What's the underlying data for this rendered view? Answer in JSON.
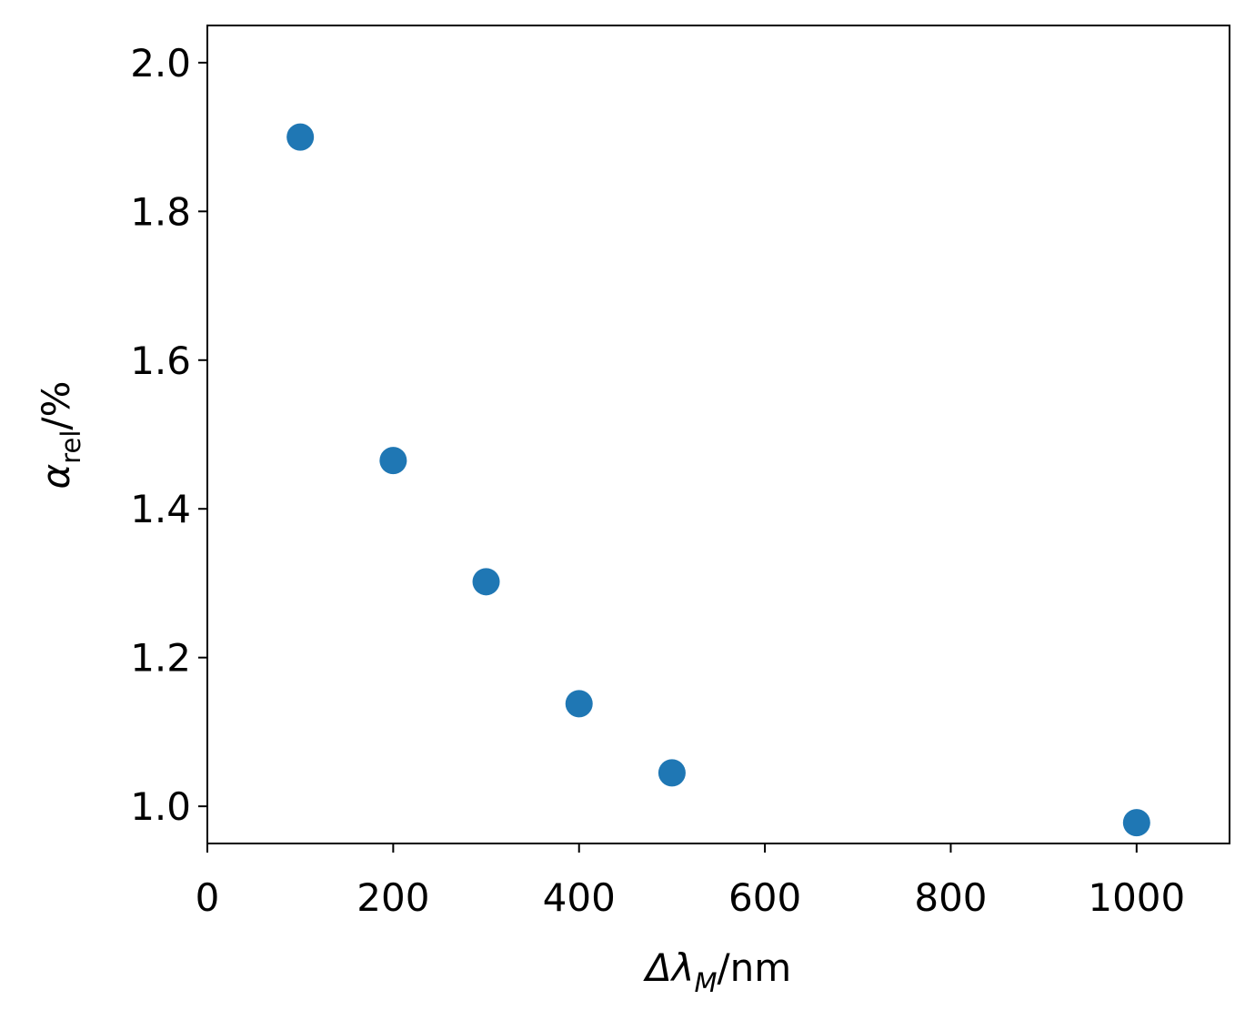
{
  "chart_data": {
    "type": "scatter",
    "x": [
      100,
      200,
      300,
      400,
      500,
      1000
    ],
    "series": [
      {
        "color": "#1f77b4",
        "values": [
          1.9,
          1.465,
          1.302,
          1.138,
          1.045,
          0.978
        ]
      }
    ],
    "xlim": [
      0,
      1100
    ],
    "ylim": [
      0.95,
      2.05
    ],
    "xticks": [
      0,
      200,
      400,
      600,
      800,
      1000
    ],
    "yticks": [
      {
        "value": 1,
        "label": "1.0"
      },
      1.2,
      1.4,
      1.6,
      1.8,
      {
        "value": 2,
        "label": "2.0"
      }
    ],
    "xlabel": {
      "base": "Δλ",
      "sub": "M",
      "rest": "/nm"
    },
    "ylabel": {
      "base": "α",
      "sub": "rel",
      "rest": "/%"
    }
  }
}
